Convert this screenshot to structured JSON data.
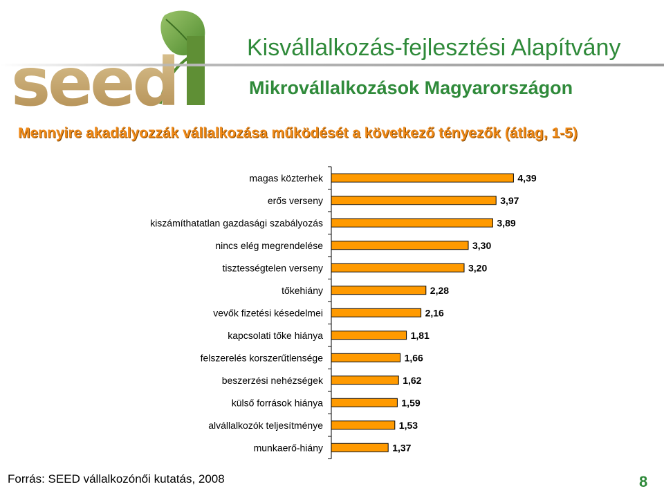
{
  "header": {
    "logo_text": "seed",
    "org_title": "Kisvállalkozás-fejlesztési Alapítvány",
    "subtitle": "Mikrovállalkozások Magyarországon"
  },
  "colors": {
    "accent_green": "#2f8a3a",
    "title_orange": "#f08a18",
    "bar_orange": "#ff9a00",
    "logo_tan": "#c9a66b"
  },
  "chart_data": {
    "type": "bar",
    "orientation": "horizontal",
    "title": "Mennyire akadályozzák vállalkozása működését a következő tényezők (átlag, 1-5)",
    "categories": [
      "magas közterhek",
      "erős verseny",
      "kiszámíthatatlan gazdasági szabályozás",
      "nincs elég megrendelése",
      "tisztességtelen verseny",
      "tőkehiány",
      "vevők fizetési késedelmei",
      "kapcsolati tőke hiánya",
      "felszerelés korszerűtlensége",
      "beszerzési nehézségek",
      "külső források hiánya",
      "alvállalkozók teljesítménye",
      "munkaerő-hiány"
    ],
    "values": [
      4.39,
      3.97,
      3.89,
      3.3,
      3.2,
      2.28,
      2.16,
      1.81,
      1.66,
      1.62,
      1.59,
      1.53,
      1.37
    ],
    "value_labels": [
      "4,39",
      "3,97",
      "3,89",
      "3,30",
      "3,20",
      "2,28",
      "2,16",
      "1,81",
      "1,66",
      "1,62",
      "1,59",
      "1,53",
      "1,37"
    ],
    "xlim": [
      0,
      5
    ],
    "grid": false,
    "legend": "none"
  },
  "footer": {
    "source": "Forrás: SEED vállalkozónői kutatás, 2008",
    "page_number": "8"
  }
}
